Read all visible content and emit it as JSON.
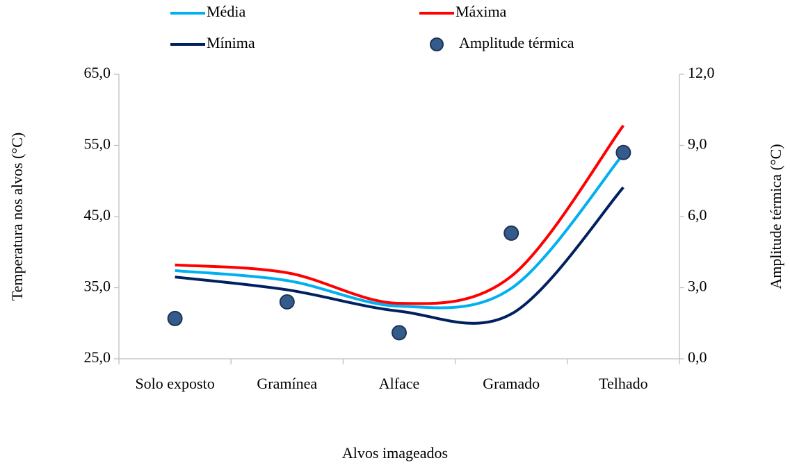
{
  "chart_data": {
    "type": "line",
    "x_label": "Alvos imageados",
    "y_label": "Temperatura nos alvos (°C)",
    "y2_label": "Amplitude térmica (°C)",
    "categories": [
      "Solo exposto",
      "Gramínea",
      "Alface",
      "Gramado",
      "Telhado"
    ],
    "series": [
      {
        "name": "Média",
        "color": "#00b0f0",
        "values": [
          37.4,
          36.0,
          32.4,
          34.9,
          53.8
        ]
      },
      {
        "name": "Máxima",
        "color": "#ff0000",
        "values": [
          38.2,
          37.1,
          32.8,
          36.6,
          57.8
        ]
      },
      {
        "name": "Mínima",
        "color": "#002060",
        "values": [
          36.5,
          34.7,
          31.7,
          31.3,
          49.1
        ]
      },
      {
        "name": "Amplitude térmica",
        "color": "#335c8c",
        "axis": "y2",
        "marker": "circle",
        "values": [
          1.7,
          2.4,
          1.1,
          5.3,
          8.7
        ]
      }
    ],
    "ylim": [
      25,
      65
    ],
    "yticks": [
      {
        "value": 25,
        "label": "25,0"
      },
      {
        "value": 35,
        "label": "35,0"
      },
      {
        "value": 45,
        "label": "45,0"
      },
      {
        "value": 55,
        "label": "55,0"
      },
      {
        "value": 65,
        "label": "65,0"
      }
    ],
    "y2lim": [
      0,
      12
    ],
    "y2ticks": [
      {
        "value": 0,
        "label": "0,0"
      },
      {
        "value": 3,
        "label": "3,0"
      },
      {
        "value": 6,
        "label": "6,0"
      },
      {
        "value": 9,
        "label": "9,0"
      },
      {
        "value": 12,
        "label": "12,0"
      }
    ],
    "smooth": true,
    "legend": "top"
  }
}
